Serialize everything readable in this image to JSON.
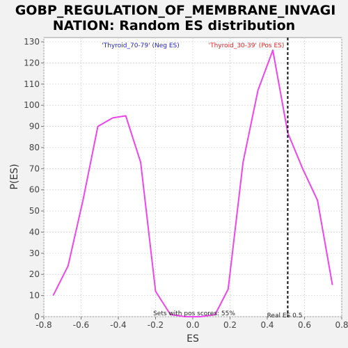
{
  "chart_data": {
    "type": "line",
    "title_line1": "GOBP_REGULATION_OF_MEMBRANE_INVAGI",
    "title_line2": "NATION: Random ES distribution",
    "xlabel": "ES",
    "ylabel": "P(ES)",
    "xlim": [
      -0.8,
      0.8
    ],
    "ylim": [
      0,
      132
    ],
    "x_ticks": [
      -0.8,
      -0.6,
      -0.4,
      -0.2,
      0.0,
      0.2,
      0.4,
      0.6,
      0.8
    ],
    "x_tick_labels": [
      "-0.8",
      "-0.6",
      "-0.4",
      "-0.2",
      "0.0",
      "0.2",
      "0.4",
      "0.6",
      "0.8"
    ],
    "y_ticks": [
      0,
      10,
      20,
      30,
      40,
      50,
      60,
      70,
      80,
      90,
      100,
      110,
      120,
      130
    ],
    "grid": true,
    "series": [
      {
        "color": "#ee44ee",
        "x": [
          -0.75,
          -0.67,
          -0.59,
          -0.51,
          -0.43,
          -0.36,
          -0.28,
          -0.2,
          -0.12,
          -0.04,
          0.04,
          0.12,
          0.19,
          0.27,
          0.35,
          0.43,
          0.51,
          0.59,
          0.67,
          0.75
        ],
        "y": [
          10,
          24,
          55,
          90,
          94,
          95,
          73,
          12,
          1,
          0,
          0,
          1,
          13,
          73,
          107,
          126,
          87,
          70,
          55,
          15
        ]
      }
    ],
    "real_es": 0.51,
    "annotations": {
      "neg_label": "'Thyroid_70-79' (Neg ES)",
      "neg_color": "#2222cc",
      "pos_label": "'Thyroid_30-39' (Pos ES)",
      "pos_color": "#dd2222",
      "sets_with_pos": "Sets with pos scores: 55%",
      "real_es_label": "Real ES 0.5"
    }
  }
}
